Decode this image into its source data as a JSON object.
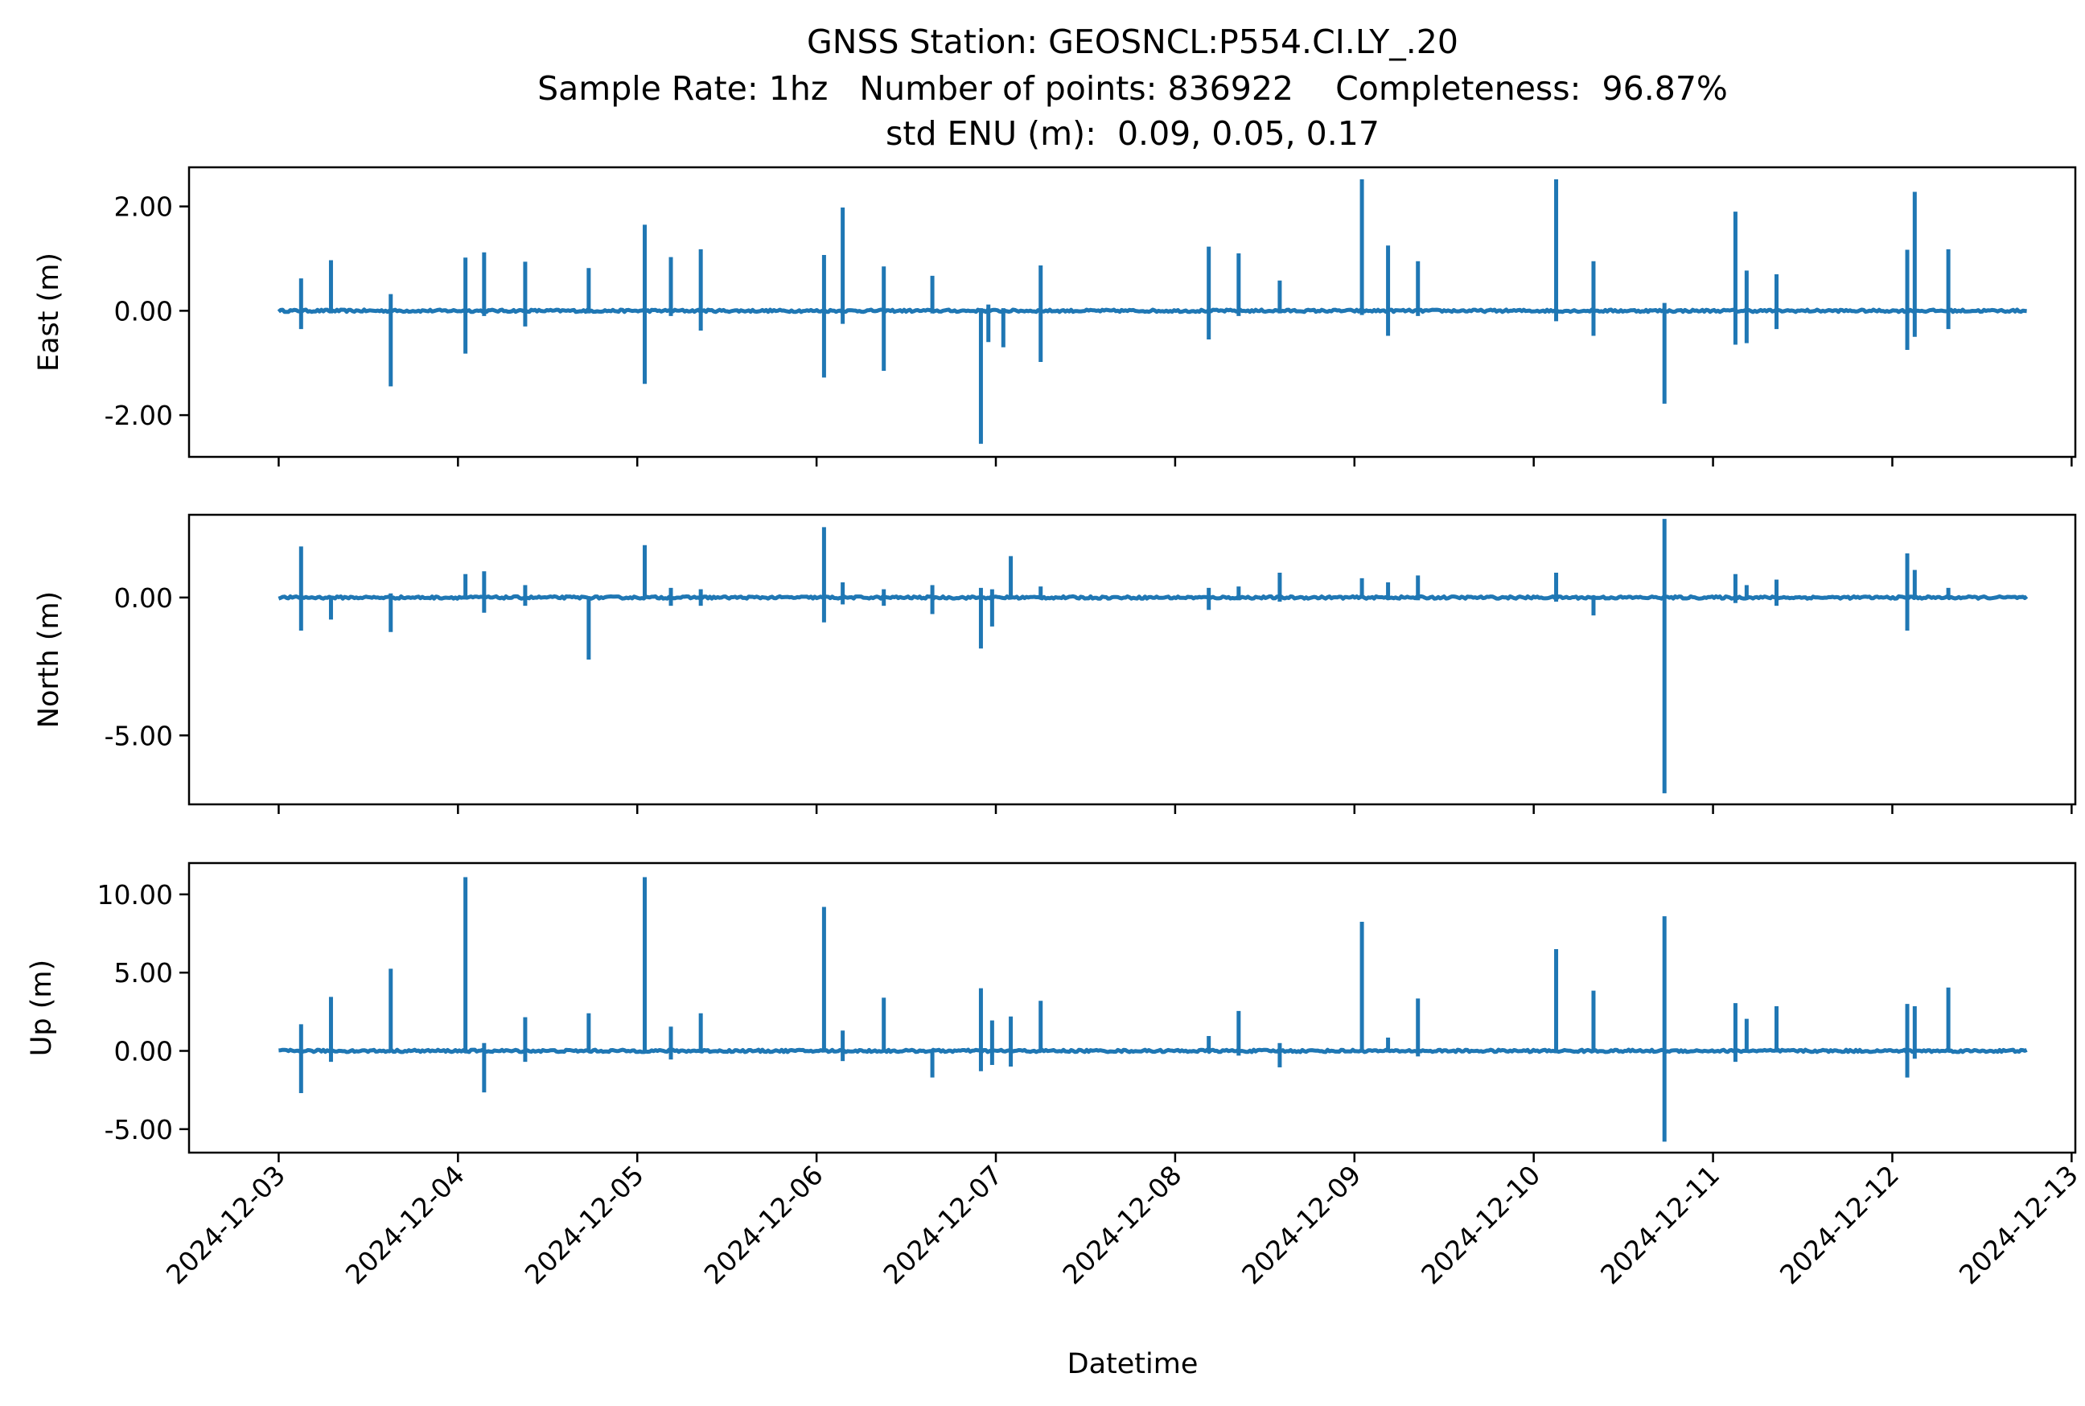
{
  "chart_data": {
    "type": "line",
    "title": "GNSS Station: GEOSNCL:P554.CI.LY_.20",
    "subtitle_line1": "Sample Rate: 1hz   Number of points: 836922    Completeness:  96.87%",
    "subtitle_line2": "std ENU (m):  0.09, 0.05, 0.17",
    "xlabel": "Datetime",
    "x_ticks": [
      "2024-12-03",
      "2024-12-04",
      "2024-12-05",
      "2024-12-06",
      "2024-12-07",
      "2024-12-08",
      "2024-12-09",
      "2024-12-10",
      "2024-12-11",
      "2024-12-12",
      "2024-12-13"
    ],
    "xlim": [
      "2024-12-02T12:00",
      "2024-12-13T00:30"
    ],
    "x_start": "2024-12-03T00:00",
    "x_end": "2024-12-12T18:00",
    "grid": false,
    "legend": "none",
    "line_color": "#1f77b4",
    "panels": [
      {
        "name": "East",
        "ylabel": "East (m)",
        "ylim": [
          -2.8,
          2.75
        ],
        "y_ticks": [
          {
            "value": 2.0,
            "label": "2.00"
          },
          {
            "value": 0.0,
            "label": "0.00"
          },
          {
            "value": -2.0,
            "label": "-2.00"
          }
        ],
        "spikes": [
          {
            "x": "2024-12-03T03:00",
            "lo": -0.35,
            "hi": 0.62
          },
          {
            "x": "2024-12-03T07:00",
            "lo": -0.05,
            "hi": 0.97
          },
          {
            "x": "2024-12-03T15:00",
            "lo": -1.45,
            "hi": 0.32
          },
          {
            "x": "2024-12-04T01:00",
            "lo": -0.82,
            "hi": 1.02
          },
          {
            "x": "2024-12-04T03:30",
            "lo": -0.1,
            "hi": 1.12
          },
          {
            "x": "2024-12-04T09:00",
            "lo": -0.3,
            "hi": 0.94
          },
          {
            "x": "2024-12-04T17:30",
            "lo": -0.05,
            "hi": 0.82
          },
          {
            "x": "2024-12-05T01:00",
            "lo": -1.4,
            "hi": 1.65
          },
          {
            "x": "2024-12-05T04:30",
            "lo": -0.1,
            "hi": 1.03
          },
          {
            "x": "2024-12-05T08:30",
            "lo": -0.38,
            "hi": 1.18
          },
          {
            "x": "2024-12-06T01:00",
            "lo": -1.28,
            "hi": 1.07
          },
          {
            "x": "2024-12-06T03:30",
            "lo": -0.25,
            "hi": 1.98
          },
          {
            "x": "2024-12-06T09:00",
            "lo": -1.15,
            "hi": 0.85
          },
          {
            "x": "2024-12-06T15:30",
            "lo": -0.05,
            "hi": 0.67
          },
          {
            "x": "2024-12-06T22:00",
            "lo": -2.55,
            "hi": 0.05
          },
          {
            "x": "2024-12-06T23:00",
            "lo": -0.6,
            "hi": 0.12
          },
          {
            "x": "2024-12-07T01:00",
            "lo": -0.7,
            "hi": 0.05
          },
          {
            "x": "2024-12-07T06:00",
            "lo": -0.98,
            "hi": 0.87
          },
          {
            "x": "2024-12-08T04:30",
            "lo": -0.55,
            "hi": 1.23
          },
          {
            "x": "2024-12-08T08:30",
            "lo": -0.1,
            "hi": 1.1
          },
          {
            "x": "2024-12-08T14:00",
            "lo": -0.05,
            "hi": 0.58
          },
          {
            "x": "2024-12-09T01:00",
            "lo": -0.08,
            "hi": 2.52
          },
          {
            "x": "2024-12-09T04:30",
            "lo": -0.48,
            "hi": 1.25
          },
          {
            "x": "2024-12-09T08:30",
            "lo": -0.1,
            "hi": 0.95
          },
          {
            "x": "2024-12-10T03:00",
            "lo": -0.2,
            "hi": 2.52
          },
          {
            "x": "2024-12-10T08:00",
            "lo": -0.48,
            "hi": 0.95
          },
          {
            "x": "2024-12-10T17:30",
            "lo": -1.78,
            "hi": 0.15
          },
          {
            "x": "2024-12-11T03:00",
            "lo": -0.65,
            "hi": 1.9
          },
          {
            "x": "2024-12-11T04:30",
            "lo": -0.62,
            "hi": 0.77
          },
          {
            "x": "2024-12-11T08:30",
            "lo": -0.35,
            "hi": 0.7
          },
          {
            "x": "2024-12-12T02:00",
            "lo": -0.75,
            "hi": 1.17
          },
          {
            "x": "2024-12-12T03:00",
            "lo": -0.5,
            "hi": 2.28
          },
          {
            "x": "2024-12-12T07:30",
            "lo": -0.35,
            "hi": 1.18
          }
        ]
      },
      {
        "name": "North",
        "ylabel": "North (m)",
        "ylim": [
          -7.5,
          3.0
        ],
        "y_ticks": [
          {
            "value": 0.0,
            "label": "0.00"
          },
          {
            "value": -5.0,
            "label": "-5.00"
          }
        ],
        "spikes": [
          {
            "x": "2024-12-03T03:00",
            "lo": -1.2,
            "hi": 1.85
          },
          {
            "x": "2024-12-03T07:00",
            "lo": -0.8,
            "hi": 0.05
          },
          {
            "x": "2024-12-03T15:00",
            "lo": -1.25,
            "hi": 0.15
          },
          {
            "x": "2024-12-04T01:00",
            "lo": -0.05,
            "hi": 0.85
          },
          {
            "x": "2024-12-04T03:30",
            "lo": -0.55,
            "hi": 0.95
          },
          {
            "x": "2024-12-04T09:00",
            "lo": -0.3,
            "hi": 0.45
          },
          {
            "x": "2024-12-04T17:30",
            "lo": -2.25,
            "hi": 0.05
          },
          {
            "x": "2024-12-05T01:00",
            "lo": -0.05,
            "hi": 1.9
          },
          {
            "x": "2024-12-05T04:30",
            "lo": -0.3,
            "hi": 0.35
          },
          {
            "x": "2024-12-05T08:30",
            "lo": -0.3,
            "hi": 0.3
          },
          {
            "x": "2024-12-06T01:00",
            "lo": -0.9,
            "hi": 2.55
          },
          {
            "x": "2024-12-06T03:30",
            "lo": -0.25,
            "hi": 0.55
          },
          {
            "x": "2024-12-06T09:00",
            "lo": -0.3,
            "hi": 0.3
          },
          {
            "x": "2024-12-06T15:30",
            "lo": -0.6,
            "hi": 0.45
          },
          {
            "x": "2024-12-06T22:00",
            "lo": -1.85,
            "hi": 0.35
          },
          {
            "x": "2024-12-06T23:30",
            "lo": -1.05,
            "hi": 0.3
          },
          {
            "x": "2024-12-07T02:00",
            "lo": -0.05,
            "hi": 1.5
          },
          {
            "x": "2024-12-07T06:00",
            "lo": -0.05,
            "hi": 0.4
          },
          {
            "x": "2024-12-08T04:30",
            "lo": -0.45,
            "hi": 0.35
          },
          {
            "x": "2024-12-08T08:30",
            "lo": -0.1,
            "hi": 0.4
          },
          {
            "x": "2024-12-08T14:00",
            "lo": -0.15,
            "hi": 0.9
          },
          {
            "x": "2024-12-09T01:00",
            "lo": -0.05,
            "hi": 0.7
          },
          {
            "x": "2024-12-09T04:30",
            "lo": -0.05,
            "hi": 0.55
          },
          {
            "x": "2024-12-09T08:30",
            "lo": -0.1,
            "hi": 0.8
          },
          {
            "x": "2024-12-10T03:00",
            "lo": -0.15,
            "hi": 0.9
          },
          {
            "x": "2024-12-10T08:00",
            "lo": -0.65,
            "hi": 0.05
          },
          {
            "x": "2024-12-10T17:30",
            "lo": -7.1,
            "hi": 2.85
          },
          {
            "x": "2024-12-11T03:00",
            "lo": -0.2,
            "hi": 0.85
          },
          {
            "x": "2024-12-11T04:30",
            "lo": -0.05,
            "hi": 0.45
          },
          {
            "x": "2024-12-11T08:30",
            "lo": -0.3,
            "hi": 0.65
          },
          {
            "x": "2024-12-12T02:00",
            "lo": -1.2,
            "hi": 1.6
          },
          {
            "x": "2024-12-12T03:00",
            "lo": -0.05,
            "hi": 1.0
          },
          {
            "x": "2024-12-12T07:30",
            "lo": -0.05,
            "hi": 0.35
          }
        ]
      },
      {
        "name": "Up",
        "ylabel": "Up (m)",
        "ylim": [
          -6.5,
          12.0
        ],
        "y_ticks": [
          {
            "value": 10.0,
            "label": "10.00"
          },
          {
            "value": 5.0,
            "label": "5.00"
          },
          {
            "value": 0.0,
            "label": "0.00"
          },
          {
            "value": -5.0,
            "label": "-5.00"
          }
        ],
        "spikes": [
          {
            "x": "2024-12-03T03:00",
            "lo": -2.7,
            "hi": 1.7
          },
          {
            "x": "2024-12-03T07:00",
            "lo": -0.7,
            "hi": 3.45
          },
          {
            "x": "2024-12-03T15:00",
            "lo": -0.05,
            "hi": 5.25
          },
          {
            "x": "2024-12-04T01:00",
            "lo": -0.1,
            "hi": 11.1
          },
          {
            "x": "2024-12-04T03:30",
            "lo": -2.65,
            "hi": 0.5
          },
          {
            "x": "2024-12-04T09:00",
            "lo": -0.7,
            "hi": 2.15
          },
          {
            "x": "2024-12-04T17:30",
            "lo": -0.1,
            "hi": 2.4
          },
          {
            "x": "2024-12-05T01:00",
            "lo": -0.05,
            "hi": 11.1
          },
          {
            "x": "2024-12-05T04:30",
            "lo": -0.55,
            "hi": 1.55
          },
          {
            "x": "2024-12-05T08:30",
            "lo": -0.1,
            "hi": 2.4
          },
          {
            "x": "2024-12-06T01:00",
            "lo": -0.1,
            "hi": 9.2
          },
          {
            "x": "2024-12-06T03:30",
            "lo": -0.65,
            "hi": 1.3
          },
          {
            "x": "2024-12-06T09:00",
            "lo": -0.1,
            "hi": 3.4
          },
          {
            "x": "2024-12-06T15:30",
            "lo": -1.7,
            "hi": 0.1
          },
          {
            "x": "2024-12-06T22:00",
            "lo": -1.3,
            "hi": 4.0
          },
          {
            "x": "2024-12-06T23:30",
            "lo": -0.9,
            "hi": 1.95
          },
          {
            "x": "2024-12-07T02:00",
            "lo": -1.0,
            "hi": 2.2
          },
          {
            "x": "2024-12-07T06:00",
            "lo": -0.1,
            "hi": 3.2
          },
          {
            "x": "2024-12-08T04:30",
            "lo": -0.1,
            "hi": 0.95
          },
          {
            "x": "2024-12-08T08:30",
            "lo": -0.3,
            "hi": 2.55
          },
          {
            "x": "2024-12-08T14:00",
            "lo": -1.05,
            "hi": 0.5
          },
          {
            "x": "2024-12-09T01:00",
            "lo": -0.1,
            "hi": 8.25
          },
          {
            "x": "2024-12-09T04:30",
            "lo": -0.1,
            "hi": 0.85
          },
          {
            "x": "2024-12-09T08:30",
            "lo": -0.35,
            "hi": 3.35
          },
          {
            "x": "2024-12-10T03:00",
            "lo": -0.1,
            "hi": 6.5
          },
          {
            "x": "2024-12-10T08:00",
            "lo": -0.1,
            "hi": 3.85
          },
          {
            "x": "2024-12-10T17:30",
            "lo": -5.8,
            "hi": 8.6
          },
          {
            "x": "2024-12-11T03:00",
            "lo": -0.7,
            "hi": 3.05
          },
          {
            "x": "2024-12-11T04:30",
            "lo": -0.1,
            "hi": 2.05
          },
          {
            "x": "2024-12-11T08:30",
            "lo": -0.1,
            "hi": 2.85
          },
          {
            "x": "2024-12-12T02:00",
            "lo": -1.7,
            "hi": 3.0
          },
          {
            "x": "2024-12-12T03:00",
            "lo": -0.5,
            "hi": 2.85
          },
          {
            "x": "2024-12-12T07:30",
            "lo": -0.1,
            "hi": 4.05
          }
        ]
      }
    ]
  }
}
